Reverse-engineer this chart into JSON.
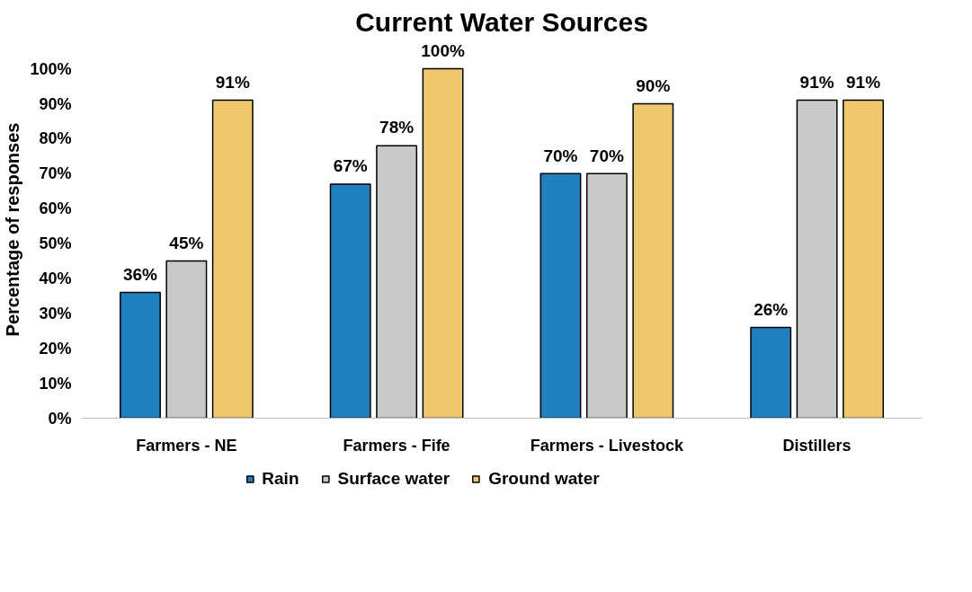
{
  "chart_data": {
    "type": "bar",
    "title": "Current Water Sources",
    "ylabel": "Percentage of responses",
    "categories": [
      "Farmers - NE",
      "Farmers - Fife",
      "Farmers - Livestock",
      "Distillers"
    ],
    "series": [
      {
        "name": "Rain",
        "color": "#1f7fbf",
        "values": [
          36,
          67,
          70,
          26
        ],
        "value_labels": [
          "36%",
          "67%",
          "70%",
          "26%"
        ]
      },
      {
        "name": "Surface water",
        "color": "#c9c9c9",
        "values": [
          45,
          78,
          70,
          91
        ],
        "value_labels": [
          "45%",
          "78%",
          "70%",
          "91%"
        ]
      },
      {
        "name": "Ground water",
        "color": "#f0c870",
        "values": [
          91,
          100,
          90,
          91
        ],
        "value_labels": [
          "91%",
          "100%",
          "90%",
          "91%"
        ]
      }
    ],
    "ylim": [
      0,
      100
    ],
    "yticks": [
      {
        "value": 0,
        "label": "0%"
      },
      {
        "value": 10,
        "label": "10%"
      },
      {
        "value": 20,
        "label": "20%"
      },
      {
        "value": 30,
        "label": "30%"
      },
      {
        "value": 40,
        "label": "40%"
      },
      {
        "value": 50,
        "label": "50%"
      },
      {
        "value": 60,
        "label": "60%"
      },
      {
        "value": 70,
        "label": "70%"
      },
      {
        "value": 80,
        "label": "80%"
      },
      {
        "value": 90,
        "label": "90%"
      },
      {
        "value": 100,
        "label": "100%"
      }
    ],
    "grid": false,
    "legend": "bottom"
  }
}
